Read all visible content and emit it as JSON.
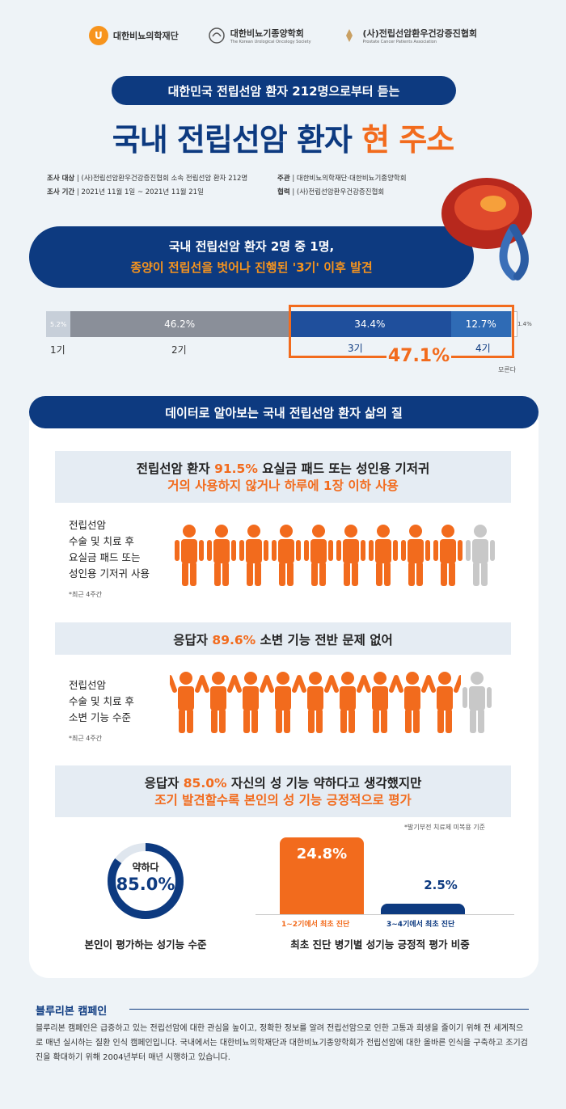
{
  "logos": [
    {
      "name": "대한비뇨의학재단",
      "sub": ""
    },
    {
      "name": "대한비뇨기종양학회",
      "sub": "The Korean Urological Oncology Society"
    },
    {
      "name": "(사)전립선암환우건강증진협회",
      "sub": "Prostate Cancer Patients Association"
    }
  ],
  "subtitle": "대한민국 전립선암 환자 212명으로부터 듣는",
  "title_main": "국내 전립선암 환자",
  "title_hl": "현 주소",
  "meta": {
    "target_label": "조사 대상",
    "target": "(사)전립선암환우건강증진협회 소속 전립선암 환자 212명",
    "period_label": "조사 기간",
    "period": "2021년 11월 1일 ~ 2021년 11월 21일",
    "host_label": "주관",
    "host": "대한비뇨의학재단·대한비뇨기종양학회",
    "coop_label": "협력",
    "coop": "(사)전립선암환우건강증진협회"
  },
  "banner": {
    "line1": "국내 전립선암 환자 2명 중 1명,",
    "line2": "종양이 전립선을 벗어나 진행된 '3기' 이후 발견"
  },
  "chart_data": {
    "type": "bar",
    "categories": [
      "1기",
      "2기",
      "3기",
      "4기",
      "모른다"
    ],
    "values": [
      5.2,
      46.2,
      34.4,
      12.7,
      1.4
    ],
    "labels": [
      "5.2%",
      "46.2%",
      "34.4%",
      "12.7%",
      "1.4%"
    ],
    "highlight_label": "47.1%",
    "colors": [
      "#c7cfd9",
      "#8a8f99",
      "#1f4f9c",
      "#2f6bb5",
      "#ffffff"
    ]
  },
  "section_title": "데이터로 알아보는 국내 전립선암 환자 삶의 질",
  "stat1": {
    "pre": "전립선암 환자 ",
    "pct": "91.5%",
    "post": " 요실금 패드 또는 성인용 기저귀",
    "line2": "거의 사용하지 않거나 하루에 1장 이하 사용",
    "side": [
      "전립선암",
      "수술 및 치료 후",
      "요실금 패드 또는",
      "성인용 기저귀 사용"
    ],
    "note": "*최근 4주간",
    "ratio": 0.915
  },
  "stat2": {
    "pre": "응답자 ",
    "pct": "89.6%",
    "post": " 소변 기능 전반 문제 없어",
    "side": [
      "전립선암",
      "수술 및 치료 후",
      "소변 기능 수준"
    ],
    "note": "*최근 4주간",
    "ratio": 0.896
  },
  "stat3": {
    "pre": "응답자 ",
    "pct": "85.0%",
    "post": " 자신의 성 기능 약하다고 생각했지만",
    "line2": "조기 발견할수록 본인의 성 기능 긍정적으로 평가",
    "note": "*발기부전 치료제 미복용 기준"
  },
  "donut": {
    "label": "약하다",
    "value": "85.0%",
    "ratio": 0.85,
    "caption": "본인이 평가하는 성기능 수준"
  },
  "bars2": {
    "items": [
      {
        "value": 24.8,
        "label": "24.8%",
        "cat": "1~2기에서 최초 진단",
        "color": "#f26b1d"
      },
      {
        "value": 2.5,
        "label": "2.5%",
        "cat": "3~4기에서 최초 진단",
        "color": "#0d3a80"
      }
    ],
    "caption": "최초 진단 병기별 성기능 긍정적 평가 비중"
  },
  "campaign": {
    "title": "블루리본 캠페인",
    "text": "블루리본 캠페인은 급증하고 있는 전립선암에 대한 관심을 높이고, 정확한 정보를 알려 전립선암으로 인한 고통과 희생을 줄이기 위해 전 세계적으로 매년 실시하는 질환 인식 캠페인입니다. 국내에서는 대한비뇨의학재단과 대한비뇨기종양학회가 전립선암에 대한 올바른 인식을 구축하고 조기검진을 확대하기 위해 2004년부터 매년 시행하고 있습니다."
  }
}
